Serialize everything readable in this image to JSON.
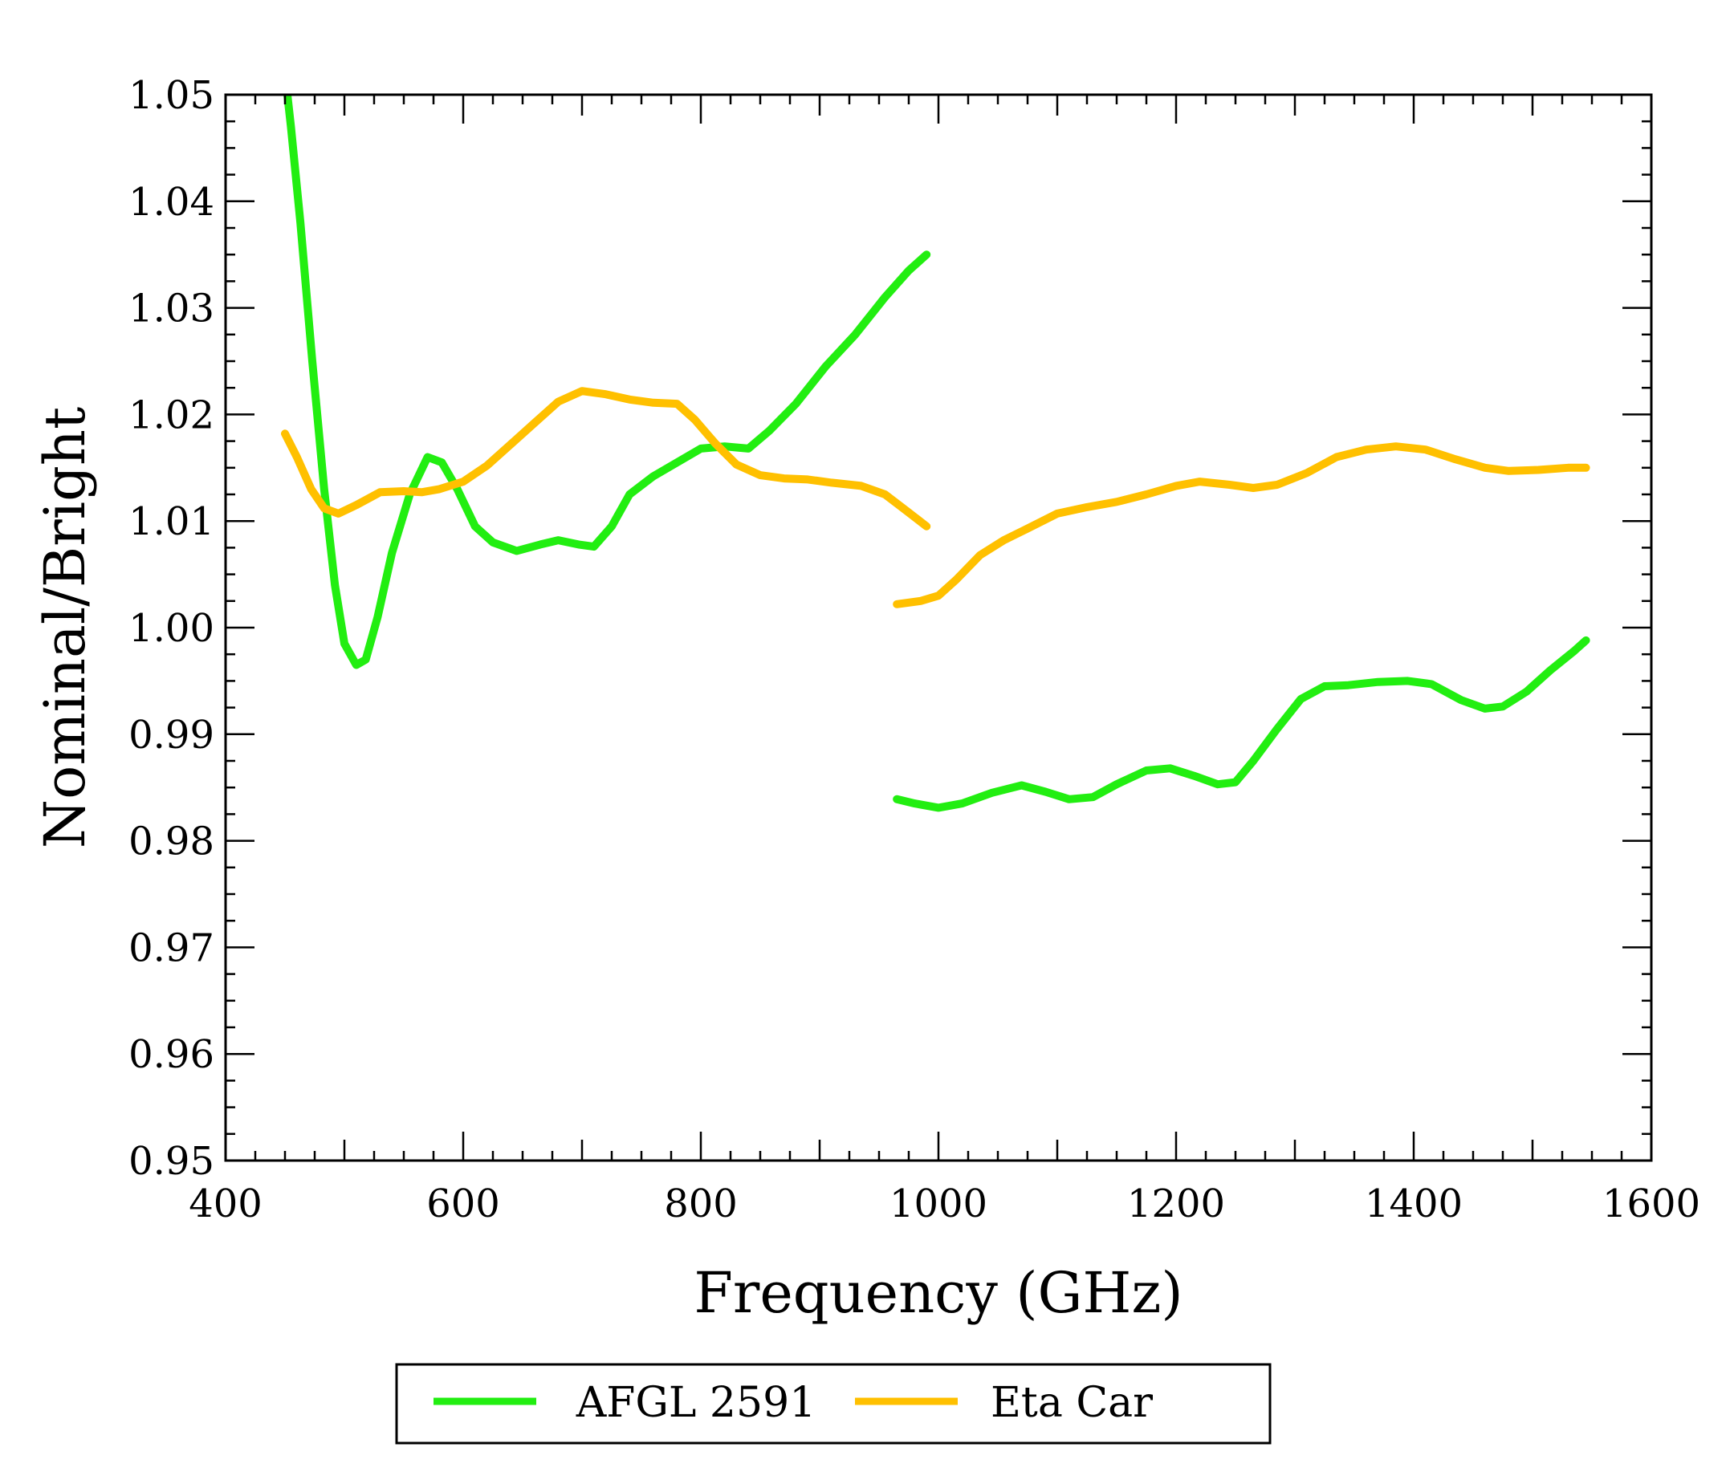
{
  "chart_data": {
    "type": "line",
    "title": "",
    "xlabel": "Frequency (GHz)",
    "ylabel": "Nominal/Bright",
    "xlim": [
      400,
      1600
    ],
    "ylim": [
      0.95,
      1.05
    ],
    "x_ticks": [
      400,
      600,
      800,
      1000,
      1200,
      1400,
      1600
    ],
    "y_ticks": [
      0.95,
      0.96,
      0.97,
      0.98,
      0.99,
      1.0,
      1.01,
      1.02,
      1.03,
      1.04,
      1.05
    ],
    "x_tick_labels": [
      "400",
      "600",
      "800",
      "1000",
      "1200",
      "1400",
      "1600"
    ],
    "y_tick_labels": [
      "0.95",
      "0.96",
      "0.97",
      "0.98",
      "0.99",
      "1.00",
      "1.01",
      "1.02",
      "1.03",
      "1.04",
      "1.05"
    ],
    "grid": false,
    "legend_position": "bottom-center",
    "series": [
      {
        "name": "AFGL 2591",
        "color": "#22ee11",
        "segments": [
          [
            [
              450,
              1.052
            ],
            [
              455,
              1.047
            ],
            [
              463,
              1.038
            ],
            [
              473,
              1.025
            ],
            [
              483,
              1.013
            ],
            [
              492,
              1.004
            ],
            [
              500,
              0.9985
            ],
            [
              510,
              0.9965
            ],
            [
              518,
              0.997
            ],
            [
              528,
              1.001
            ],
            [
              540,
              1.007
            ],
            [
              555,
              1.0125
            ],
            [
              570,
              1.016
            ],
            [
              582,
              1.0155
            ],
            [
              595,
              1.013
            ],
            [
              610,
              1.0095
            ],
            [
              625,
              1.008
            ],
            [
              645,
              1.0072
            ],
            [
              665,
              1.0078
            ],
            [
              680,
              1.0082
            ],
            [
              697,
              1.0078
            ],
            [
              710,
              1.0076
            ],
            [
              725,
              1.0095
            ],
            [
              740,
              1.0125
            ],
            [
              760,
              1.0142
            ],
            [
              780,
              1.0155
            ],
            [
              800,
              1.0168
            ],
            [
              820,
              1.017
            ],
            [
              840,
              1.0168
            ],
            [
              858,
              1.0185
            ],
            [
              880,
              1.021
            ],
            [
              905,
              1.0245
            ],
            [
              930,
              1.0275
            ],
            [
              955,
              1.031
            ],
            [
              975,
              1.0335
            ],
            [
              990,
              1.035
            ]
          ],
          [
            [
              965,
              0.9839
            ],
            [
              980,
              0.9835
            ],
            [
              1000,
              0.9831
            ],
            [
              1020,
              0.9835
            ],
            [
              1045,
              0.9845
            ],
            [
              1070,
              0.9852
            ],
            [
              1090,
              0.9846
            ],
            [
              1110,
              0.9839
            ],
            [
              1130,
              0.9841
            ],
            [
              1150,
              0.9853
            ],
            [
              1175,
              0.9866
            ],
            [
              1195,
              0.9868
            ],
            [
              1215,
              0.9861
            ],
            [
              1235,
              0.9853
            ],
            [
              1250,
              0.9855
            ],
            [
              1265,
              0.9875
            ],
            [
              1285,
              0.9905
            ],
            [
              1305,
              0.9933
            ],
            [
              1325,
              0.9945
            ],
            [
              1345,
              0.9946
            ],
            [
              1370,
              0.9949
            ],
            [
              1395,
              0.995
            ],
            [
              1415,
              0.9947
            ],
            [
              1440,
              0.9932
            ],
            [
              1460,
              0.9924
            ],
            [
              1475,
              0.9926
            ],
            [
              1495,
              0.994
            ],
            [
              1515,
              0.996
            ],
            [
              1535,
              0.9978
            ],
            [
              1545,
              0.9988
            ]
          ]
        ]
      },
      {
        "name": "Eta Car",
        "color": "#ffc000",
        "segments": [
          [
            [
              450,
              1.0182
            ],
            [
              460,
              1.016
            ],
            [
              472,
              1.013
            ],
            [
              483,
              1.0112
            ],
            [
              495,
              1.0107
            ],
            [
              510,
              1.0115
            ],
            [
              530,
              1.0127
            ],
            [
              550,
              1.0128
            ],
            [
              565,
              1.0127
            ],
            [
              580,
              1.013
            ],
            [
              600,
              1.0137
            ],
            [
              620,
              1.0152
            ],
            [
              640,
              1.0172
            ],
            [
              660,
              1.0192
            ],
            [
              680,
              1.0212
            ],
            [
              700,
              1.0222
            ],
            [
              720,
              1.0219
            ],
            [
              740,
              1.0214
            ],
            [
              760,
              1.0211
            ],
            [
              780,
              1.021
            ],
            [
              795,
              1.0195
            ],
            [
              812,
              1.0173
            ],
            [
              830,
              1.0153
            ],
            [
              850,
              1.0143
            ],
            [
              870,
              1.014
            ],
            [
              890,
              1.0139
            ],
            [
              910,
              1.0136
            ],
            [
              935,
              1.0133
            ],
            [
              955,
              1.0125
            ],
            [
              975,
              1.0108
            ],
            [
              990,
              1.0095
            ]
          ],
          [
            [
              965,
              1.0022
            ],
            [
              985,
              1.0025
            ],
            [
              1000,
              1.003
            ],
            [
              1015,
              1.0045
            ],
            [
              1035,
              1.0068
            ],
            [
              1055,
              1.0082
            ],
            [
              1075,
              1.0093
            ],
            [
              1100,
              1.0107
            ],
            [
              1125,
              1.0113
            ],
            [
              1150,
              1.0118
            ],
            [
              1175,
              1.0125
            ],
            [
              1200,
              1.0133
            ],
            [
              1220,
              1.0137
            ],
            [
              1245,
              1.0134
            ],
            [
              1265,
              1.0131
            ],
            [
              1285,
              1.0134
            ],
            [
              1310,
              1.0145
            ],
            [
              1335,
              1.016
            ],
            [
              1360,
              1.0167
            ],
            [
              1385,
              1.017
            ],
            [
              1410,
              1.0167
            ],
            [
              1435,
              1.0158
            ],
            [
              1460,
              1.015
            ],
            [
              1480,
              1.0147
            ],
            [
              1505,
              1.0148
            ],
            [
              1530,
              1.015
            ],
            [
              1545,
              1.015
            ]
          ]
        ]
      }
    ]
  }
}
